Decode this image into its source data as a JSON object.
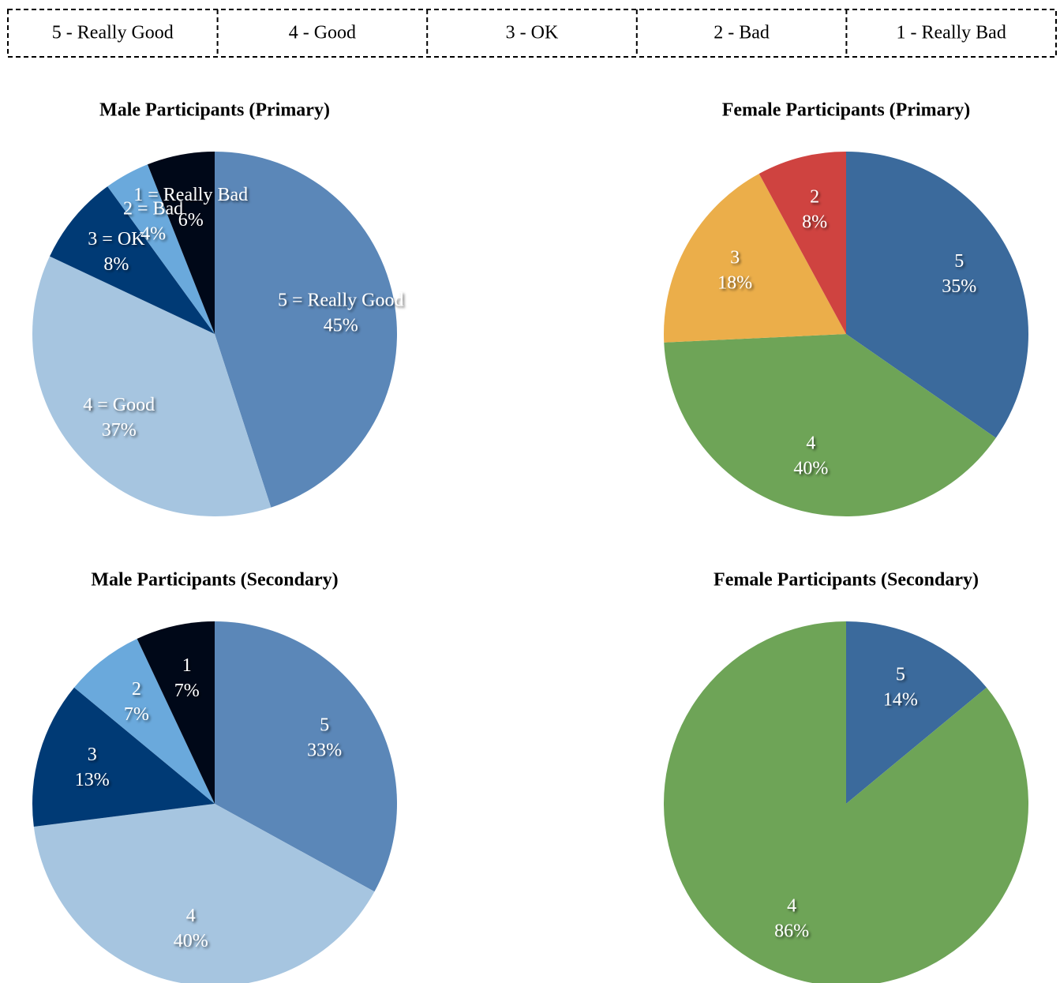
{
  "legend": [
    "5 - Really Good",
    "4 - Good",
    "3 - OK",
    "2 - Bad",
    "1 - Really Bad"
  ],
  "chart_data": [
    {
      "type": "pie",
      "title": "Male Participants (Primary)",
      "categories": [
        "5 = Really Good",
        "4 = Good",
        "3 = OK",
        "2 = Bad",
        "1 = Really Bad"
      ],
      "values": [
        45,
        37,
        8,
        4,
        6
      ],
      "value_labels": [
        "45%",
        "37%",
        "8%",
        "4%",
        "6%"
      ],
      "colors": [
        "#5b87b8",
        "#a6c5e0",
        "#003a75",
        "#6aa9dc",
        "#000818"
      ]
    },
    {
      "type": "pie",
      "title": "Female Participants (Primary)",
      "categories": [
        "5",
        "4",
        "3",
        "2"
      ],
      "values": [
        35,
        40,
        18,
        8
      ],
      "value_labels": [
        "35%",
        "40%",
        "18%",
        "8%"
      ],
      "colors": [
        "#3b6a9c",
        "#6ea457",
        "#ebae4a",
        "#cf4340"
      ]
    },
    {
      "type": "pie",
      "title": "Male Participants (Secondary)",
      "categories": [
        "5",
        "4",
        "3",
        "2",
        "1"
      ],
      "values": [
        33,
        40,
        13,
        7,
        7
      ],
      "value_labels": [
        "33%",
        "40%",
        "13%",
        "7%",
        "7%"
      ],
      "colors": [
        "#5b87b8",
        "#a6c5e0",
        "#003a75",
        "#6aa9dc",
        "#000818"
      ]
    },
    {
      "type": "pie",
      "title": "Female Participants (Secondary)",
      "categories": [
        "5",
        "4"
      ],
      "values": [
        14,
        86
      ],
      "value_labels": [
        "14%",
        "86%"
      ],
      "colors": [
        "#3b6a9c",
        "#6ea457"
      ]
    }
  ]
}
